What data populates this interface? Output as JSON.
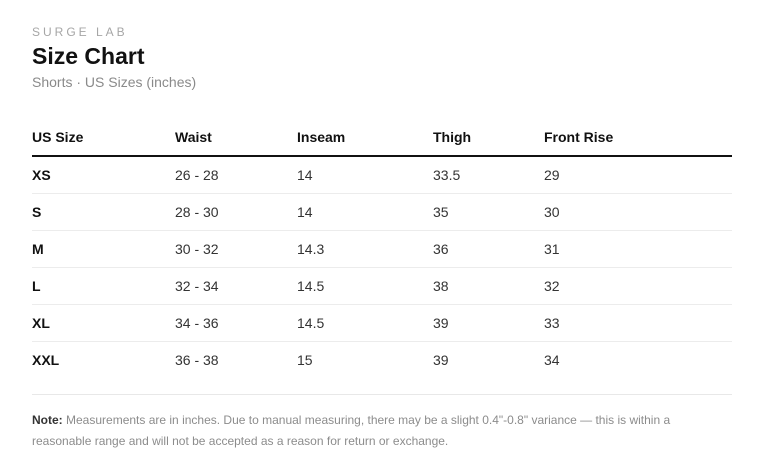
{
  "brand": "SURGE LAB",
  "title": "Size Chart",
  "subtitle": "Shorts · US Sizes (inches)",
  "table": {
    "headers": [
      "US Size",
      "Waist",
      "Inseam",
      "Thigh",
      "Front Rise"
    ],
    "rows": [
      [
        "XS",
        "26 - 28",
        "14",
        "33.5",
        "29"
      ],
      [
        "S",
        "28 - 30",
        "14",
        "35",
        "30"
      ],
      [
        "M",
        "30 - 32",
        "14.3",
        "36",
        "31"
      ],
      [
        "L",
        "32 - 34",
        "14.5",
        "38",
        "32"
      ],
      [
        "XL",
        "34 - 36",
        "14.5",
        "39",
        "33"
      ],
      [
        "XXL",
        "36 - 38",
        "15",
        "39",
        "34"
      ]
    ]
  },
  "note": {
    "label": "Note:",
    "text": "Measurements are in inches. Due to manual measuring, there may be a slight 0.4\"-0.8\" variance — this is within a reasonable range and will not be accepted as a reason for return or exchange."
  }
}
